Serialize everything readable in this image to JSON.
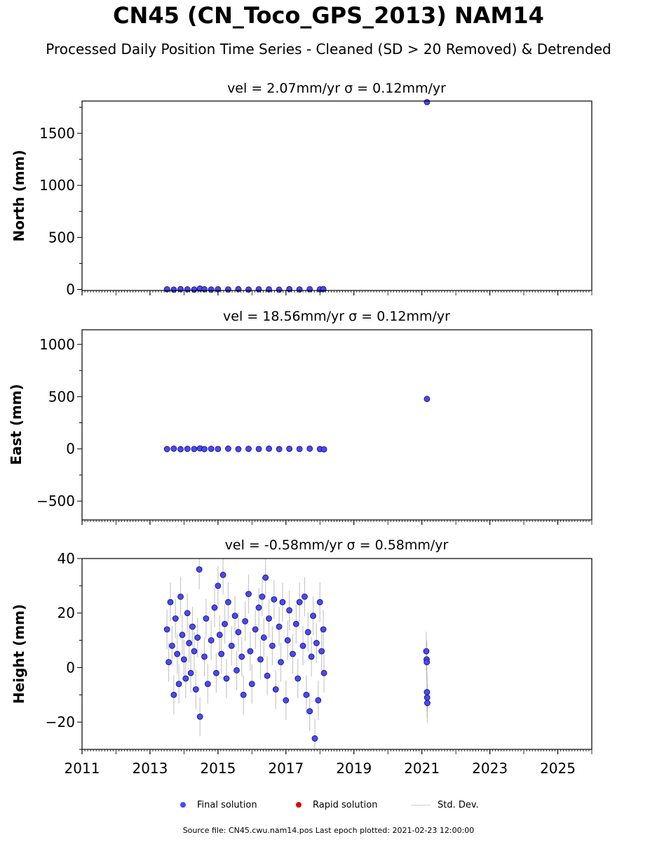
{
  "figure": {
    "title": "CN45 (CN_Toco_GPS_2013) NAM14",
    "subtitle": "Processed Daily Position Time Series - Cleaned (SD > 20 Removed) & Detrended",
    "source_note": "Source file: CN45.cwu.nam14.pos  Last epoch plotted: 2021-02-23 12:00:00"
  },
  "legend": {
    "final_label": "Final solution",
    "rapid_label": "Rapid solution",
    "std_label": "Std. Dev.",
    "final_color": "#4848ff",
    "rapid_color": "#e00000",
    "std_color": "#c8c8c8"
  },
  "chart_data": [
    {
      "type": "scatter",
      "title": "vel = 2.07mm/yr   σ = 0.12mm/yr",
      "ylabel": "North (mm)",
      "xlim": [
        2011,
        2026
      ],
      "ylim": [
        -10,
        1810
      ],
      "yticks": [
        0,
        500,
        1000,
        1500
      ],
      "ytick_labels": [
        "0",
        "500",
        "1000",
        "1500"
      ],
      "series": [
        {
          "values": [
            {
              "x": 2013.5,
              "y": 2
            },
            {
              "x": 2013.7,
              "y": -2
            },
            {
              "x": 2013.9,
              "y": 3
            },
            {
              "x": 2014.1,
              "y": 1
            },
            {
              "x": 2014.3,
              "y": -1
            },
            {
              "x": 2014.47,
              "y": 8
            },
            {
              "x": 2014.6,
              "y": 2
            },
            {
              "x": 2014.8,
              "y": -1
            },
            {
              "x": 2015.0,
              "y": 2
            },
            {
              "x": 2015.3,
              "y": 0
            },
            {
              "x": 2015.6,
              "y": 3
            },
            {
              "x": 2015.9,
              "y": -1
            },
            {
              "x": 2016.2,
              "y": 2
            },
            {
              "x": 2016.5,
              "y": 1
            },
            {
              "x": 2016.8,
              "y": -2
            },
            {
              "x": 2017.1,
              "y": 3
            },
            {
              "x": 2017.4,
              "y": 0
            },
            {
              "x": 2017.7,
              "y": 2
            },
            {
              "x": 2018.0,
              "y": 1
            },
            {
              "x": 2018.1,
              "y": 3
            },
            {
              "x": 2021.15,
              "y": 1800
            }
          ]
        }
      ]
    },
    {
      "type": "scatter",
      "title": "vel = 18.56mm/yr   σ = 0.12mm/yr",
      "ylabel": "East (mm)",
      "xlim": [
        2011,
        2026
      ],
      "ylim": [
        -680,
        1140
      ],
      "yticks": [
        -500,
        0,
        500,
        1000
      ],
      "ytick_labels": [
        "−500",
        "0",
        "500",
        "1000"
      ],
      "series": [
        {
          "values": [
            {
              "x": 2013.5,
              "y": -2
            },
            {
              "x": 2013.7,
              "y": 2
            },
            {
              "x": 2013.9,
              "y": -3
            },
            {
              "x": 2014.1,
              "y": 1
            },
            {
              "x": 2014.3,
              "y": -1
            },
            {
              "x": 2014.47,
              "y": 5
            },
            {
              "x": 2014.6,
              "y": -2
            },
            {
              "x": 2014.8,
              "y": 1
            },
            {
              "x": 2015.0,
              "y": -1
            },
            {
              "x": 2015.3,
              "y": 2
            },
            {
              "x": 2015.6,
              "y": -2
            },
            {
              "x": 2015.9,
              "y": 1
            },
            {
              "x": 2016.2,
              "y": -1
            },
            {
              "x": 2016.5,
              "y": 2
            },
            {
              "x": 2016.8,
              "y": -2
            },
            {
              "x": 2017.1,
              "y": 1
            },
            {
              "x": 2017.4,
              "y": -1
            },
            {
              "x": 2017.7,
              "y": 2
            },
            {
              "x": 2018.0,
              "y": -2
            },
            {
              "x": 2018.12,
              "y": -4
            },
            {
              "x": 2021.15,
              "y": 478
            }
          ]
        }
      ]
    },
    {
      "type": "scatter",
      "title": "vel = -0.58mm/yr   σ = 0.58mm/yr",
      "ylabel": "Height (mm)",
      "xlim": [
        2011,
        2026
      ],
      "ylim": [
        -30,
        40
      ],
      "yticks": [
        -20,
        0,
        20,
        40
      ],
      "ytick_labels": [
        "−20",
        "0",
        "20",
        "40"
      ],
      "xticks": [
        2011,
        2013,
        2015,
        2017,
        2019,
        2021,
        2023,
        2025
      ],
      "xtick_labels": [
        "2011",
        "2013",
        "2015",
        "2017",
        "2019",
        "2021",
        "2023",
        "2025"
      ],
      "series": [
        {
          "values": [
            {
              "x": 2013.5,
              "y": 14
            },
            {
              "x": 2013.55,
              "y": 2
            },
            {
              "x": 2013.6,
              "y": 24
            },
            {
              "x": 2013.65,
              "y": 8
            },
            {
              "x": 2013.7,
              "y": -10
            },
            {
              "x": 2013.75,
              "y": 18
            },
            {
              "x": 2013.8,
              "y": 5
            },
            {
              "x": 2013.85,
              "y": -6
            },
            {
              "x": 2013.9,
              "y": 26
            },
            {
              "x": 2013.95,
              "y": 12
            },
            {
              "x": 2014.0,
              "y": 3
            },
            {
              "x": 2014.05,
              "y": -4
            },
            {
              "x": 2014.1,
              "y": 20
            },
            {
              "x": 2014.15,
              "y": 9
            },
            {
              "x": 2014.2,
              "y": -2
            },
            {
              "x": 2014.25,
              "y": 15
            },
            {
              "x": 2014.3,
              "y": 6
            },
            {
              "x": 2014.35,
              "y": -8
            },
            {
              "x": 2014.4,
              "y": 11
            },
            {
              "x": 2014.45,
              "y": 36
            },
            {
              "x": 2014.47,
              "y": -18
            },
            {
              "x": 2014.6,
              "y": 4
            },
            {
              "x": 2014.65,
              "y": 18
            },
            {
              "x": 2014.7,
              "y": -6
            },
            {
              "x": 2014.8,
              "y": 10
            },
            {
              "x": 2014.9,
              "y": 22
            },
            {
              "x": 2014.95,
              "y": -2
            },
            {
              "x": 2015.0,
              "y": 30
            },
            {
              "x": 2015.05,
              "y": 12
            },
            {
              "x": 2015.1,
              "y": 5
            },
            {
              "x": 2015.15,
              "y": 34
            },
            {
              "x": 2015.2,
              "y": 16
            },
            {
              "x": 2015.25,
              "y": -4
            },
            {
              "x": 2015.3,
              "y": 24
            },
            {
              "x": 2015.4,
              "y": 8
            },
            {
              "x": 2015.5,
              "y": 19
            },
            {
              "x": 2015.55,
              "y": -1
            },
            {
              "x": 2015.6,
              "y": 13
            },
            {
              "x": 2015.7,
              "y": 4
            },
            {
              "x": 2015.75,
              "y": -10
            },
            {
              "x": 2015.8,
              "y": 17
            },
            {
              "x": 2015.9,
              "y": 27
            },
            {
              "x": 2015.95,
              "y": 6
            },
            {
              "x": 2016.0,
              "y": -6
            },
            {
              "x": 2016.1,
              "y": 14
            },
            {
              "x": 2016.2,
              "y": 22
            },
            {
              "x": 2016.25,
              "y": 3
            },
            {
              "x": 2016.3,
              "y": 26
            },
            {
              "x": 2016.35,
              "y": 11
            },
            {
              "x": 2016.4,
              "y": 33
            },
            {
              "x": 2016.45,
              "y": -3
            },
            {
              "x": 2016.5,
              "y": 18
            },
            {
              "x": 2016.6,
              "y": 8
            },
            {
              "x": 2016.65,
              "y": 25
            },
            {
              "x": 2016.7,
              "y": -8
            },
            {
              "x": 2016.8,
              "y": 15
            },
            {
              "x": 2016.85,
              "y": 2
            },
            {
              "x": 2016.9,
              "y": 24
            },
            {
              "x": 2017.0,
              "y": -12
            },
            {
              "x": 2017.05,
              "y": 10
            },
            {
              "x": 2017.1,
              "y": 21
            },
            {
              "x": 2017.2,
              "y": 5
            },
            {
              "x": 2017.3,
              "y": 16
            },
            {
              "x": 2017.35,
              "y": -4
            },
            {
              "x": 2017.4,
              "y": 24
            },
            {
              "x": 2017.5,
              "y": 8
            },
            {
              "x": 2017.55,
              "y": 26
            },
            {
              "x": 2017.6,
              "y": -10
            },
            {
              "x": 2017.65,
              "y": 13
            },
            {
              "x": 2017.7,
              "y": -16
            },
            {
              "x": 2017.75,
              "y": 4
            },
            {
              "x": 2017.8,
              "y": 19
            },
            {
              "x": 2017.85,
              "y": -26
            },
            {
              "x": 2017.9,
              "y": 9
            },
            {
              "x": 2017.95,
              "y": -12
            },
            {
              "x": 2018.0,
              "y": 24
            },
            {
              "x": 2018.05,
              "y": 6
            },
            {
              "x": 2018.1,
              "y": 14
            },
            {
              "x": 2018.12,
              "y": -2
            },
            {
              "x": 2021.13,
              "y": 6
            },
            {
              "x": 2021.14,
              "y": 3
            },
            {
              "x": 2021.145,
              "y": 2
            },
            {
              "x": 2021.15,
              "y": -9
            },
            {
              "x": 2021.155,
              "y": -11
            },
            {
              "x": 2021.16,
              "y": -13
            }
          ]
        }
      ]
    }
  ]
}
